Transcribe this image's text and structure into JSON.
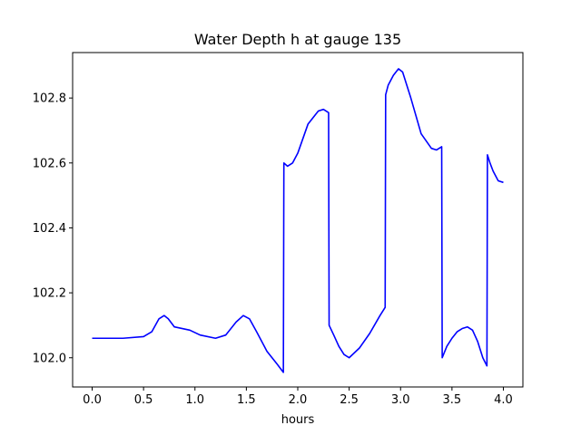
{
  "chart_data": {
    "type": "line",
    "title": "Water Depth h at gauge 135",
    "xlabel": "hours",
    "ylabel": "",
    "xlim": [
      -0.19,
      4.19
    ],
    "ylim": [
      101.91,
      102.94
    ],
    "xticks": [
      0.0,
      0.5,
      1.0,
      1.5,
      2.0,
      2.5,
      3.0,
      3.5,
      4.0
    ],
    "xtick_labels": [
      "0.0",
      "0.5",
      "1.0",
      "1.5",
      "2.0",
      "2.5",
      "3.0",
      "3.5",
      "4.0"
    ],
    "yticks": [
      102.0,
      102.2,
      102.4,
      102.6,
      102.8
    ],
    "ytick_labels": [
      "102.0",
      "102.2",
      "102.4",
      "102.6",
      "102.8"
    ],
    "grid": false,
    "line_color": "#0000ff",
    "series": [
      {
        "x": [
          0.0,
          0.3,
          0.5,
          0.58,
          0.65,
          0.7,
          0.74,
          0.8,
          0.95,
          1.05,
          1.2,
          1.3,
          1.4,
          1.47,
          1.53,
          1.6,
          1.7,
          1.8,
          1.86,
          1.865,
          1.9,
          1.95,
          2.0,
          2.1,
          2.2,
          2.25,
          2.3,
          2.305,
          2.35,
          2.4,
          2.45,
          2.5,
          2.6,
          2.7,
          2.8,
          2.85,
          2.855,
          2.88,
          2.93,
          2.98,
          3.02,
          3.1,
          3.2,
          3.3,
          3.35,
          3.4,
          3.405,
          3.45,
          3.5,
          3.55,
          3.6,
          3.65,
          3.7,
          3.75,
          3.8,
          3.84,
          3.845,
          3.87,
          3.9,
          3.95,
          4.0
        ],
        "y": [
          102.06,
          102.06,
          102.065,
          102.08,
          102.12,
          102.13,
          102.12,
          102.095,
          102.085,
          102.07,
          102.06,
          102.07,
          102.11,
          102.13,
          102.12,
          102.08,
          102.02,
          101.98,
          101.955,
          102.6,
          102.59,
          102.6,
          102.63,
          102.72,
          102.76,
          102.765,
          102.755,
          102.1,
          102.07,
          102.035,
          102.01,
          102.0,
          102.03,
          102.075,
          102.13,
          102.155,
          102.81,
          102.84,
          102.87,
          102.89,
          102.88,
          102.8,
          102.69,
          102.645,
          102.64,
          102.65,
          102.0,
          102.035,
          102.06,
          102.08,
          102.09,
          102.095,
          102.085,
          102.05,
          102.0,
          101.975,
          102.625,
          102.6,
          102.575,
          102.545,
          102.54
        ]
      }
    ]
  }
}
